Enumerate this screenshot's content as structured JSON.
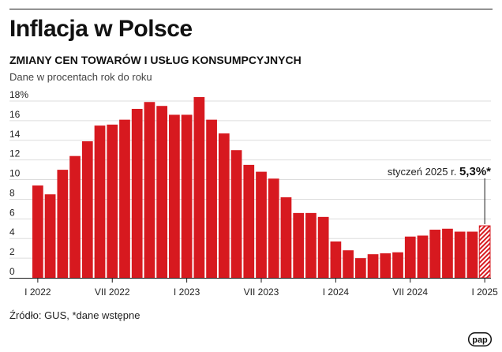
{
  "header": {
    "title": "Inflacja w Polsce",
    "subtitle": "ZMIANY CEN TOWARÓW I USŁUG KONSUMPCYJNYCH",
    "description": "Dane w procentach rok do roku"
  },
  "footer": {
    "source": "Źródło: GUS, *dane wstępne",
    "logo": "pap"
  },
  "colors": {
    "bar": "#d7191f",
    "text": "#1a1a1a",
    "grid": "#dddddd"
  },
  "chart_data": {
    "type": "bar",
    "title": "",
    "xlabel": "",
    "ylabel": "",
    "ylim": [
      0,
      18
    ],
    "yticks": [
      "0",
      "2",
      "4",
      "6",
      "8",
      "10",
      "12",
      "14",
      "16",
      "18%"
    ],
    "xticks": [
      {
        "label": "I 2022",
        "index": 0
      },
      {
        "label": "VII 2022",
        "index": 6
      },
      {
        "label": "I 2023",
        "index": 12
      },
      {
        "label": "VII 2023",
        "index": 18
      },
      {
        "label": "I 2024",
        "index": 24
      },
      {
        "label": "VII 2024",
        "index": 30
      },
      {
        "label": "I 2025",
        "index": 36
      }
    ],
    "categories": [
      "I 2022",
      "II 2022",
      "III 2022",
      "IV 2022",
      "V 2022",
      "VI 2022",
      "VII 2022",
      "VIII 2022",
      "IX 2022",
      "X 2022",
      "XI 2022",
      "XII 2022",
      "I 2023",
      "II 2023",
      "III 2023",
      "IV 2023",
      "V 2023",
      "VI 2023",
      "VII 2023",
      "VIII 2023",
      "IX 2023",
      "X 2023",
      "XI 2023",
      "XII 2023",
      "I 2024",
      "II 2024",
      "III 2024",
      "IV 2024",
      "V 2024",
      "VI 2024",
      "VII 2024",
      "VIII 2024",
      "IX 2024",
      "X 2024",
      "XI 2024",
      "XII 2024",
      "I 2025"
    ],
    "values": [
      9.4,
      8.5,
      11.0,
      12.4,
      13.9,
      15.5,
      15.6,
      16.1,
      17.2,
      17.9,
      17.5,
      16.6,
      16.6,
      18.4,
      16.1,
      14.7,
      13.0,
      11.5,
      10.8,
      10.1,
      8.2,
      6.6,
      6.6,
      6.2,
      3.7,
      2.8,
      2.0,
      2.4,
      2.5,
      2.6,
      4.2,
      4.3,
      4.9,
      5.0,
      4.7,
      4.7,
      5.3
    ],
    "preliminary_last": true,
    "grid": true,
    "annotation": {
      "text": "styczeń 2025 r.",
      "value_label": "5,3%*",
      "index": 36
    }
  }
}
